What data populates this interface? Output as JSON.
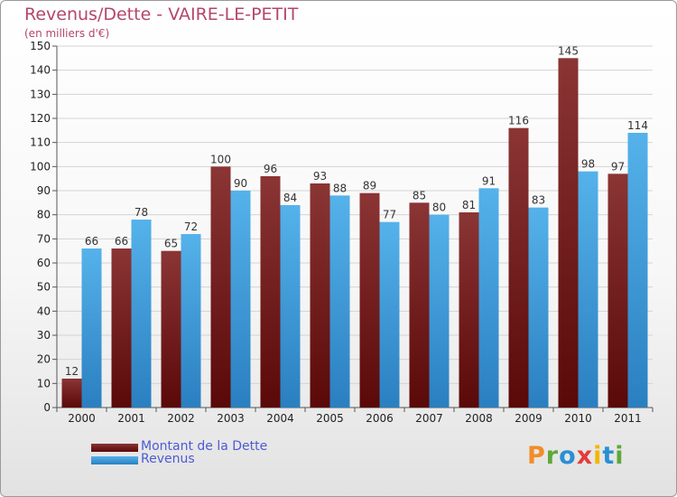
{
  "title": "Revenus/Dette - VAIRE-LE-PETIT",
  "subtitle": "(en milliers d'€)",
  "logo": {
    "text": "Proxiti",
    "colors": [
      "#f28c28",
      "#5fa83a",
      "#2a8fd6",
      "#e23c3c",
      "#f2b600",
      "#2a8fd6",
      "#5fa83a"
    ]
  },
  "colors": {
    "title": "#b4466a",
    "dette": "#7a1c1c",
    "revenus": "#3a98d8",
    "legend_text": "#4d5bd4"
  },
  "chart_data": {
    "type": "bar",
    "categories": [
      "2000",
      "2001",
      "2002",
      "2003",
      "2004",
      "2005",
      "2006",
      "2007",
      "2008",
      "2009",
      "2010",
      "2011"
    ],
    "series": [
      {
        "name": "Montant de la Dette",
        "values": [
          12,
          66,
          65,
          100,
          96,
          93,
          89,
          85,
          81,
          116,
          145,
          97
        ]
      },
      {
        "name": "Revenus",
        "values": [
          66,
          78,
          72,
          90,
          84,
          88,
          77,
          80,
          91,
          83,
          98,
          114
        ]
      }
    ],
    "ylim": [
      0,
      150
    ],
    "yticks": [
      0,
      10,
      20,
      30,
      40,
      50,
      60,
      70,
      80,
      90,
      100,
      110,
      120,
      130,
      140,
      150
    ],
    "grid": true,
    "legend_position": "bottom-left"
  }
}
